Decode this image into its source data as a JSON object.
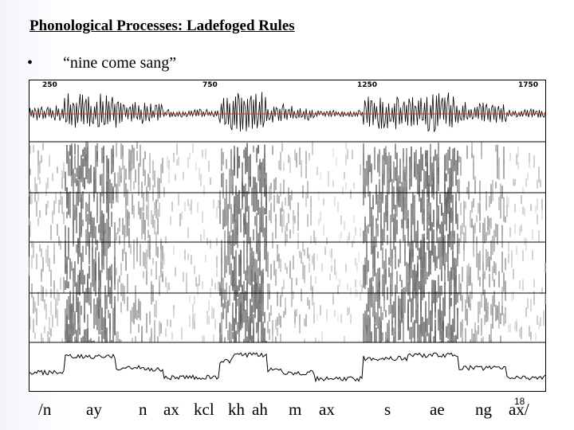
{
  "slide": {
    "title": "Phonological Processes: Ladefoged Rules",
    "bullet": "•",
    "bullet_text": "“nine come sang”",
    "slide_number": "18"
  },
  "figure": {
    "time_ticks": [
      "250",
      "750",
      "1250",
      "1750"
    ],
    "panels": [
      "waveform",
      "spectrogram",
      "energy-contour"
    ],
    "waveform_line_color": "#c0392b"
  },
  "transcription": [
    "/n",
    "ay",
    "n",
    "ax",
    "kcl",
    "kh",
    "ah",
    "m",
    "ax",
    "s",
    "ae",
    "ng",
    "ax/"
  ]
}
